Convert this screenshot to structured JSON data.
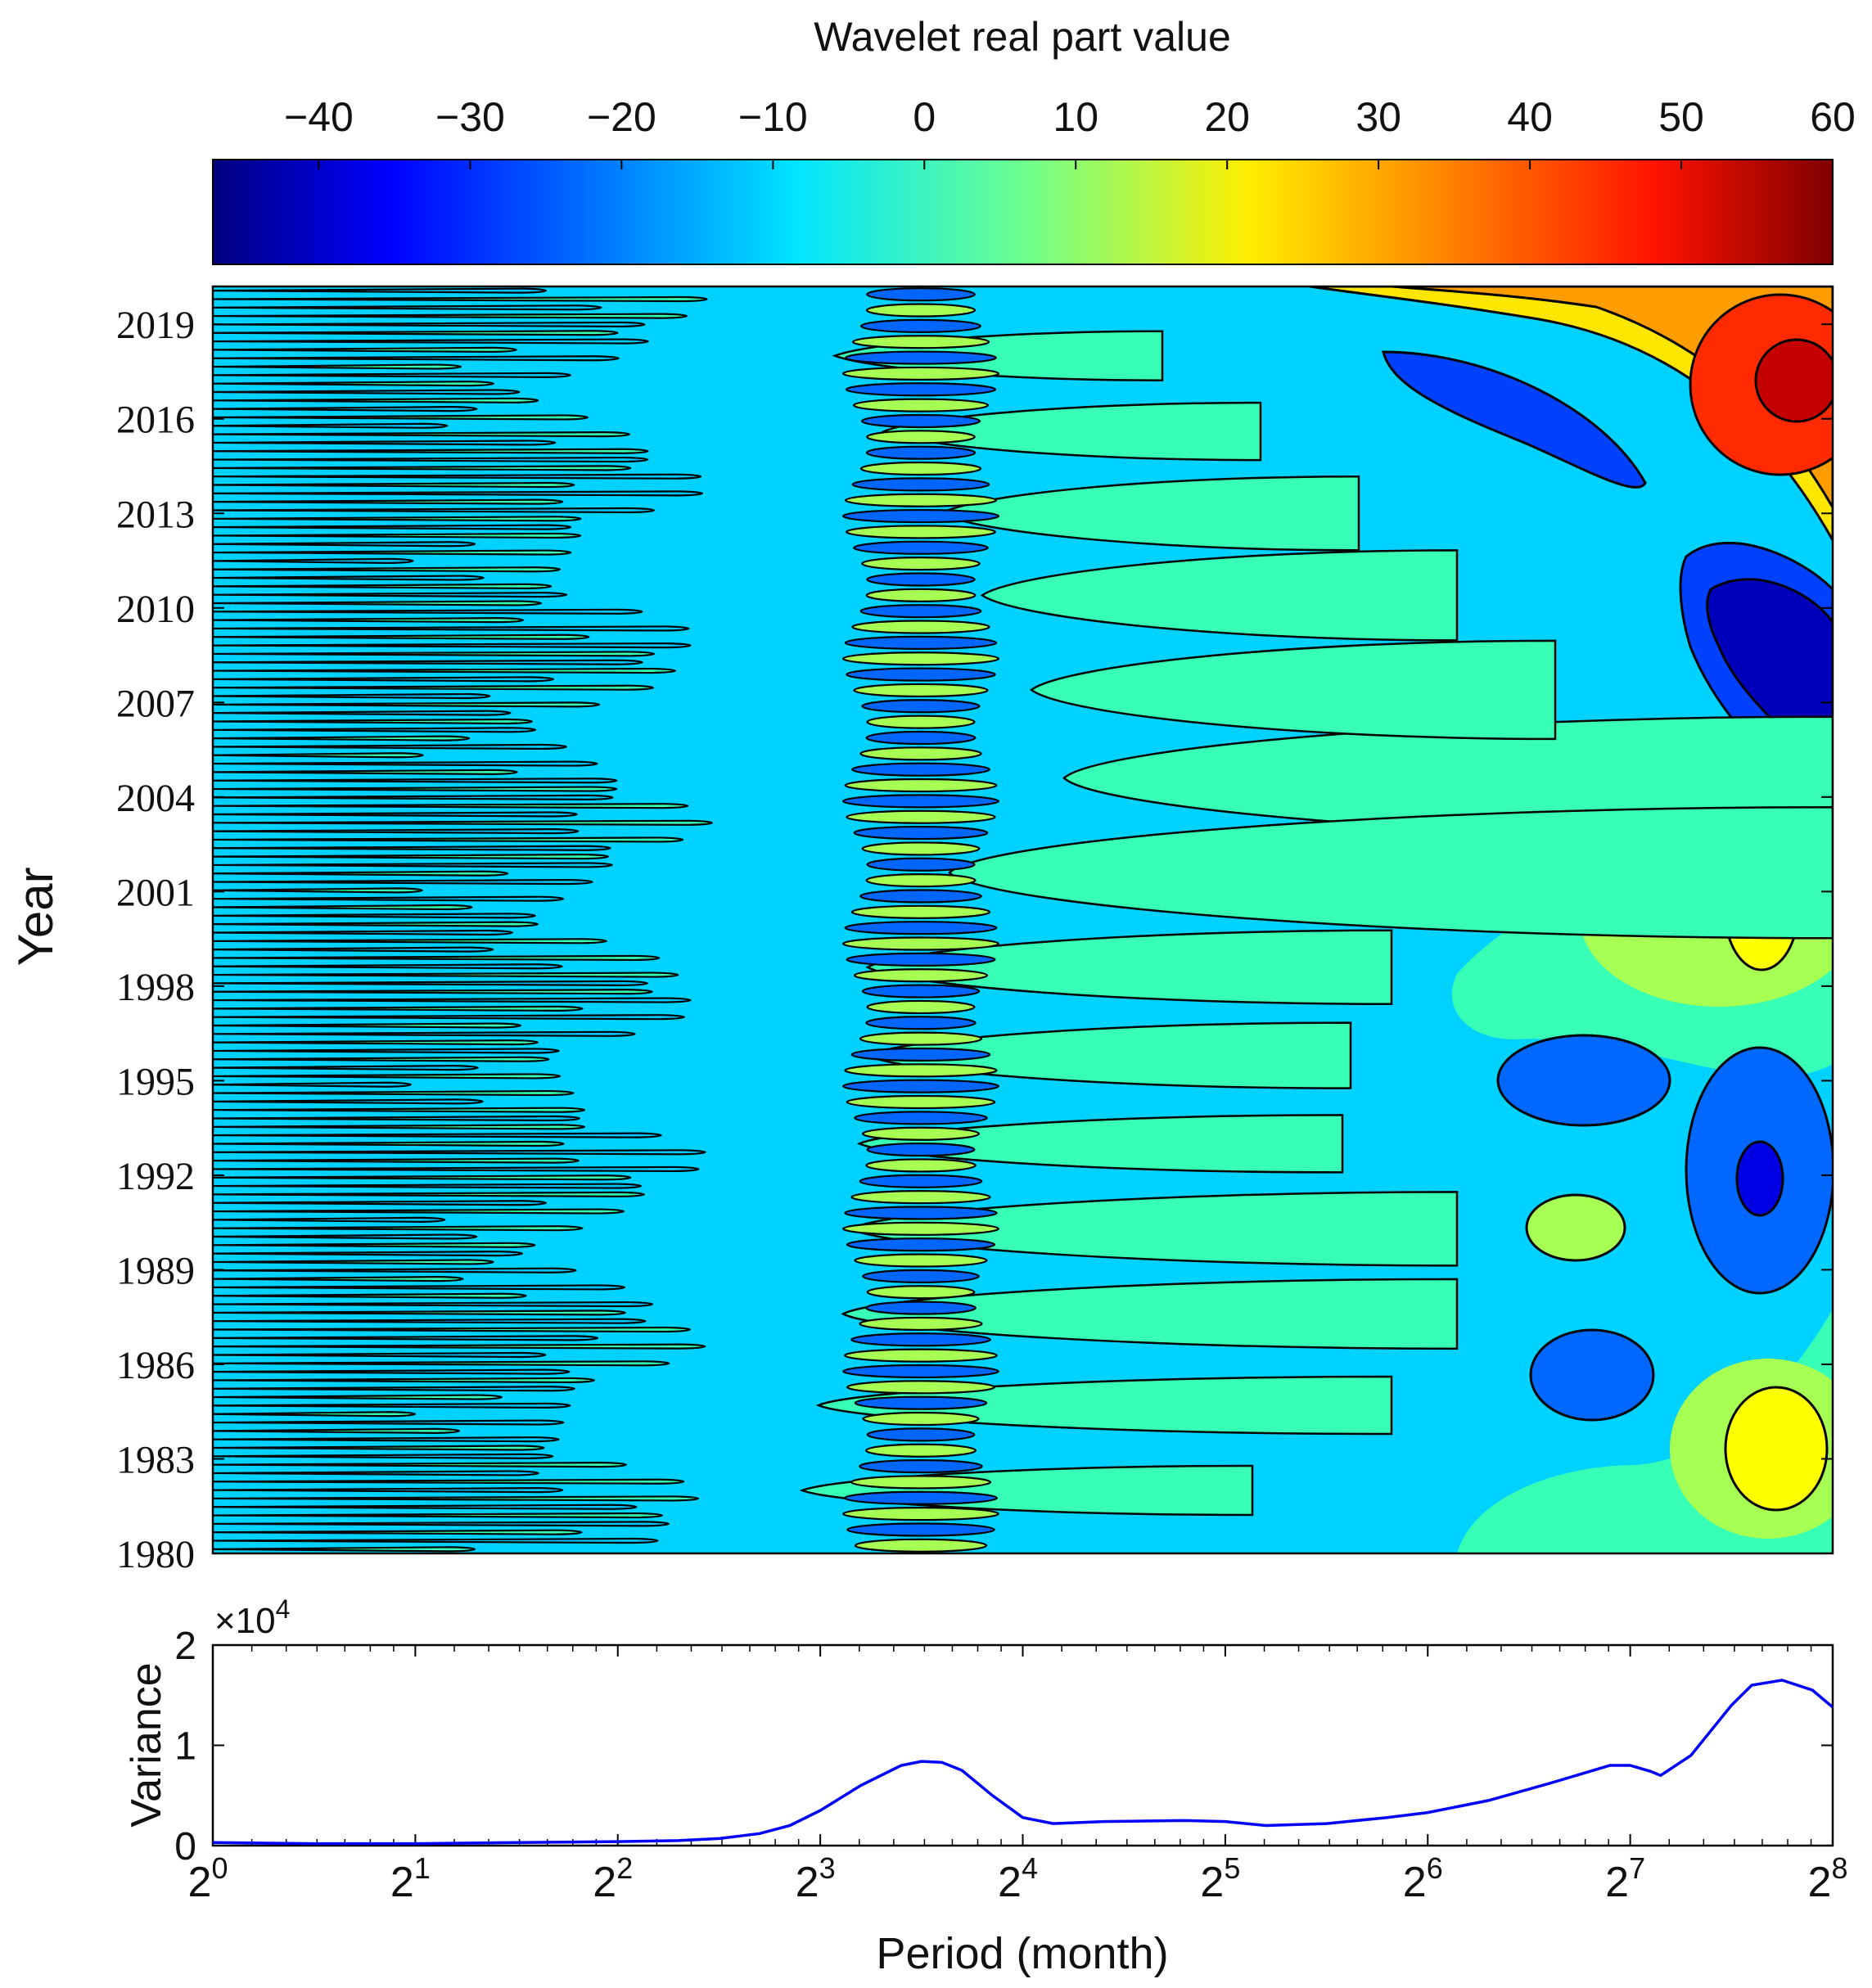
{
  "colorbar": {
    "title": "Wavelet real part value",
    "ticks": [
      "−40",
      "−30",
      "−20",
      "−10",
      "0",
      "10",
      "20",
      "30",
      "40",
      "50",
      "60"
    ],
    "tick_values": [
      -40,
      -30,
      -20,
      -10,
      0,
      10,
      20,
      30,
      40,
      50,
      60
    ],
    "range": [
      -47,
      60
    ],
    "colormap": "jet"
  },
  "chart_data": [
    {
      "type": "heatmap",
      "ylabel": "Year",
      "yticks": [
        "2019",
        "2016",
        "2013",
        "2010",
        "2007",
        "2004",
        "2001",
        "1998",
        "1995",
        "1992",
        "1989",
        "1986",
        "1983",
        "1980"
      ],
      "ytick_values": [
        2019,
        2016,
        2013,
        2010,
        2007,
        2004,
        2001,
        1998,
        1995,
        1992,
        1989,
        1986,
        1983,
        1980
      ],
      "ylim": [
        1980,
        2020.2
      ],
      "xscale": "log2",
      "xlim_log2": [
        0,
        8
      ],
      "contours": true,
      "features": [
        {
          "period_log2": [
            3.2,
            4.0
          ],
          "years": [
            1980,
            2020
          ],
          "kind": "alternating bands",
          "values": [
            -15,
            12
          ]
        },
        {
          "period_log2": [
            6.9,
            8.0
          ],
          "years": [
            2015,
            2020
          ],
          "kind": "max",
          "value": 55
        },
        {
          "period_log2": [
            7.1,
            8.0
          ],
          "years": [
            2006,
            2011
          ],
          "kind": "min",
          "value": -40
        },
        {
          "period_log2": [
            7.3,
            7.9
          ],
          "years": [
            1998.5,
            2001.5
          ],
          "kind": "max",
          "value": 22
        },
        {
          "period_log2": [
            7.3,
            8.0
          ],
          "years": [
            1981.5,
            1984.5
          ],
          "kind": "max",
          "value": 20
        },
        {
          "period_log2": [
            7.4,
            7.9
          ],
          "years": [
            1989,
            1994
          ],
          "kind": "min",
          "value": -30
        },
        {
          "period_log2": [
            6.4,
            7.2
          ],
          "years": [
            1993.5,
            1995.5
          ],
          "kind": "min",
          "value": -22
        },
        {
          "period_log2": [
            6.5,
            7.0
          ],
          "years": [
            1984.5,
            1986.5
          ],
          "kind": "min",
          "value": -22
        },
        {
          "period_log2": [
            6.6,
            7.0
          ],
          "years": [
            1989.2,
            1991
          ],
          "kind": "max",
          "value": 8
        },
        {
          "period_log2": [
            6.0,
            7.3
          ],
          "years": [
            2011,
            2018
          ],
          "kind": "min",
          "value": -30
        }
      ]
    },
    {
      "type": "line",
      "xlabel": "Period (month)",
      "ylabel": "Variance",
      "xscale": "log2",
      "xlim_log2": [
        0,
        8
      ],
      "xticks": [
        {
          "base": "2",
          "exp": "0"
        },
        {
          "base": "2",
          "exp": "1"
        },
        {
          "base": "2",
          "exp": "2"
        },
        {
          "base": "2",
          "exp": "3"
        },
        {
          "base": "2",
          "exp": "4"
        },
        {
          "base": "2",
          "exp": "5"
        },
        {
          "base": "2",
          "exp": "6"
        },
        {
          "base": "2",
          "exp": "7"
        },
        {
          "base": "2",
          "exp": "8"
        }
      ],
      "yticks": [
        "2",
        "1",
        "0"
      ],
      "ytick_values": [
        2,
        1,
        0
      ],
      "ylim": [
        0,
        2
      ],
      "exponent_label": {
        "base": "×10",
        "exp": "4"
      },
      "series": [
        {
          "color": "#0000ff",
          "x_log2": [
            0,
            0.5,
            1,
            1.5,
            2,
            2.3,
            2.5,
            2.7,
            2.85,
            3.0,
            3.2,
            3.4,
            3.5,
            3.6,
            3.7,
            3.85,
            4.0,
            4.15,
            4.4,
            4.8,
            5.0,
            5.2,
            5.5,
            5.8,
            6.0,
            6.3,
            6.6,
            6.9,
            7.0,
            7.1,
            7.15,
            7.3,
            7.5,
            7.6,
            7.75,
            7.9,
            8.0
          ],
          "y": [
            0.03,
            0.02,
            0.02,
            0.03,
            0.04,
            0.05,
            0.07,
            0.12,
            0.2,
            0.35,
            0.6,
            0.8,
            0.84,
            0.83,
            0.75,
            0.5,
            0.28,
            0.22,
            0.24,
            0.25,
            0.24,
            0.2,
            0.22,
            0.28,
            0.33,
            0.45,
            0.62,
            0.8,
            0.8,
            0.74,
            0.7,
            0.9,
            1.4,
            1.6,
            1.65,
            1.55,
            1.38
          ]
        }
      ]
    }
  ]
}
